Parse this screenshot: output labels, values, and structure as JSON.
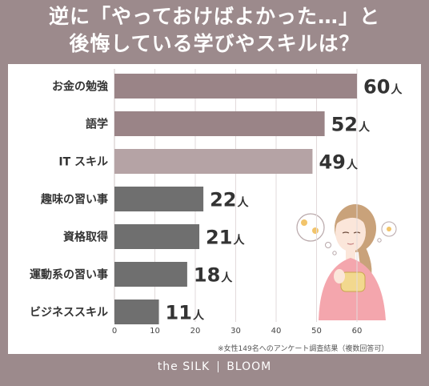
{
  "title_line1": "逆に「やっておけばよかった…」と",
  "title_line2": "後悔している学びやスキルは？",
  "note": "※女性149名へのアンケート調査結果（複数回答可）",
  "brand_left": "the SILK",
  "brand_right": "BLOOM",
  "colors": {
    "background": "#9c8a8c",
    "top2": "#9a8487",
    "third": "#b5a3a5",
    "rest": "#6f6f6f"
  },
  "chart_data": {
    "type": "bar",
    "orientation": "horizontal",
    "categories": [
      "お金の勉強",
      "語学",
      "IT スキル",
      "趣味の習い事",
      "資格取得",
      "運動系の習い事",
      "ビジネススキル"
    ],
    "values": [
      60,
      52,
      49,
      22,
      21,
      18,
      11
    ],
    "value_unit": "人",
    "xlim": [
      0,
      60
    ],
    "xticks": [
      "0",
      "10",
      "20",
      "30",
      "40",
      "50",
      "60"
    ]
  }
}
